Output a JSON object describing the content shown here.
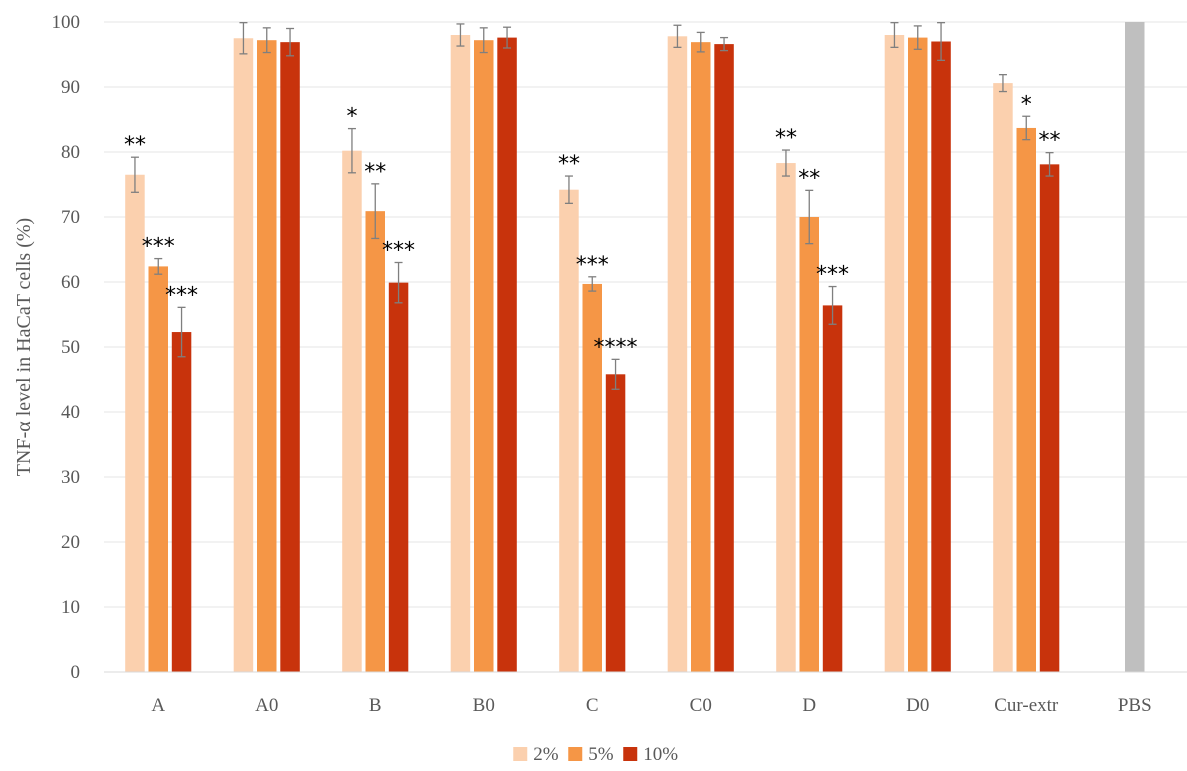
{
  "chart_data": {
    "type": "bar",
    "ylabel": "TNF-α level in HaCaT cells (%)",
    "ylim": [
      0,
      100
    ],
    "yticks": [
      0,
      10,
      20,
      30,
      40,
      50,
      60,
      70,
      80,
      90,
      100
    ],
    "grid": true,
    "legend_position": "bottom",
    "categories": [
      "A",
      "A0",
      "B",
      "B0",
      "C",
      "C0",
      "D",
      "D0",
      "Cur-extr",
      "PBS"
    ],
    "series": [
      {
        "name": "2%",
        "color": "#FBD0AE",
        "values": [
          76.5,
          97.5,
          80.2,
          98.0,
          74.2,
          97.8,
          78.3,
          98.0,
          90.6,
          null
        ],
        "errors": [
          2.7,
          2.4,
          3.4,
          1.7,
          2.1,
          1.7,
          2.0,
          1.9,
          1.3,
          null
        ],
        "significance": [
          "**",
          "",
          "*",
          "",
          "**",
          "",
          "**",
          "",
          "",
          ""
        ]
      },
      {
        "name": "5%",
        "color": "#F59646",
        "values": [
          62.4,
          97.2,
          70.9,
          97.2,
          59.7,
          96.9,
          70.0,
          97.6,
          83.7,
          null
        ],
        "errors": [
          1.2,
          1.9,
          4.2,
          1.9,
          1.1,
          1.5,
          4.1,
          1.8,
          1.8,
          null
        ],
        "significance": [
          "***",
          "",
          "**",
          "",
          "***",
          "",
          "**",
          "",
          "*",
          ""
        ]
      },
      {
        "name": "10%",
        "color": "#C8330C",
        "values": [
          52.3,
          96.9,
          59.9,
          97.6,
          45.8,
          96.6,
          56.4,
          97.0,
          78.1,
          null
        ],
        "errors": [
          3.8,
          2.1,
          3.1,
          1.6,
          2.3,
          1.0,
          2.9,
          2.9,
          1.8,
          null
        ],
        "significance": [
          "***",
          "",
          "***",
          "",
          "****",
          "",
          "***",
          "",
          "**",
          ""
        ]
      },
      {
        "name": "",
        "color": "#BFBFBF",
        "values": [
          null,
          null,
          null,
          null,
          null,
          null,
          null,
          null,
          null,
          100
        ],
        "errors": [
          null,
          null,
          null,
          null,
          null,
          null,
          null,
          null,
          null,
          0
        ],
        "significance": [
          "",
          "",
          "",
          "",
          "",
          "",
          "",
          "",
          "",
          ""
        ]
      }
    ]
  }
}
